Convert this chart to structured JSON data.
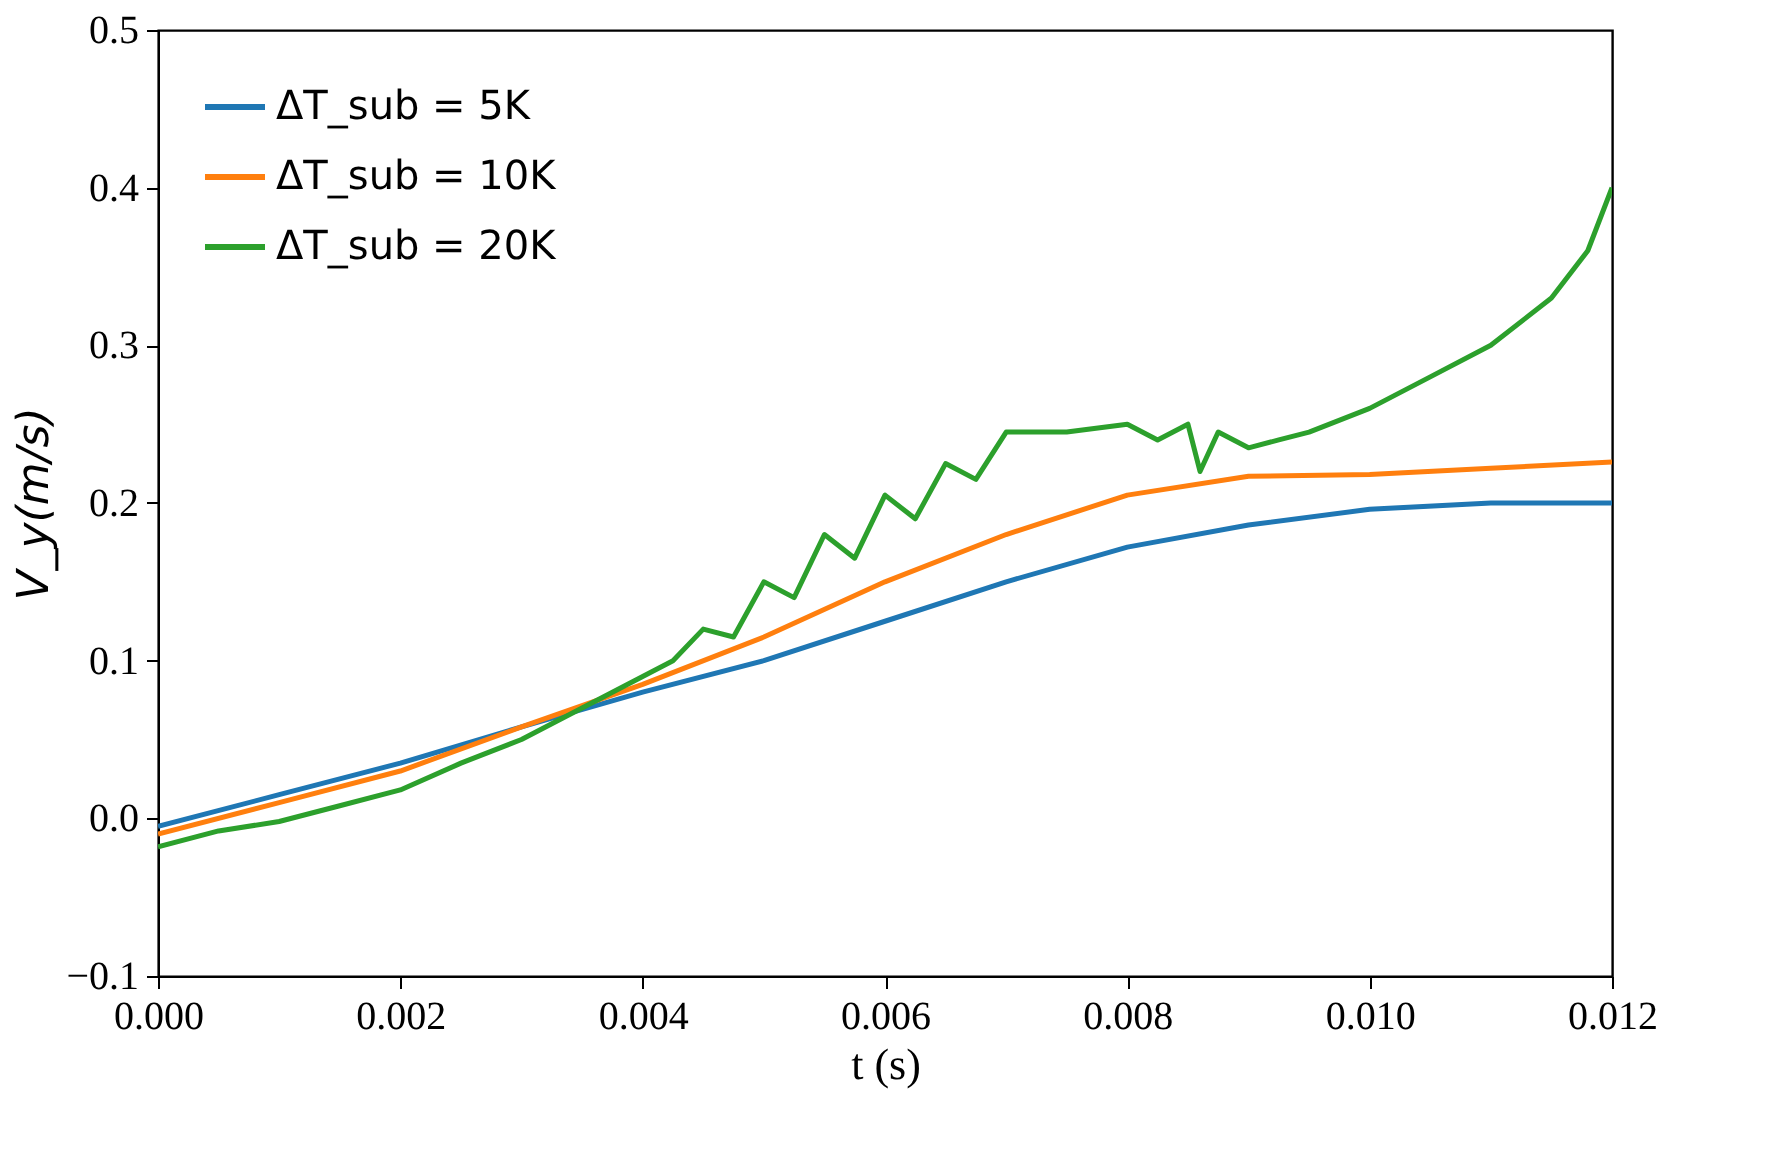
{
  "chart_data": {
    "type": "line",
    "xlabel": "t (s)",
    "ylabel": "V_y(m/s)",
    "xlim": [
      0,
      0.012
    ],
    "ylim": [
      -0.1,
      0.5
    ],
    "xticks": [
      {
        "value": 0,
        "label": "0.000"
      },
      {
        "value": 0.002,
        "label": "0.002"
      },
      {
        "value": 0.004,
        "label": "0.004"
      },
      {
        "value": 0.006,
        "label": "0.006"
      },
      {
        "value": 0.008,
        "label": "0.008"
      },
      {
        "value": 0.01,
        "label": "0.010"
      },
      {
        "value": 0.012,
        "label": "0.012"
      }
    ],
    "yticks": [
      {
        "value": -0.1,
        "label": "−0.1"
      },
      {
        "value": 0,
        "label": "0.0"
      },
      0.1,
      0.2,
      0.3,
      0.4,
      0.5
    ],
    "grid": false,
    "legend": "top left",
    "line_style": "solid",
    "marker": "none",
    "series": [
      {
        "name": "ΔT_sub = 5K",
        "color": "#1f77b4",
        "x": [
          0,
          0.001,
          0.002,
          0.003,
          0.004,
          0.005,
          0.006,
          0.007,
          0.008,
          0.009,
          0.01,
          0.011,
          0.012
        ],
        "values": [
          -0.005,
          0.015,
          0.035,
          0.058,
          0.08,
          0.1,
          0.125,
          0.15,
          0.172,
          0.186,
          0.196,
          0.2,
          0.2
        ]
      },
      {
        "name": "ΔT_sub = 10K",
        "color": "#ff7f0e",
        "x": [
          0,
          0.001,
          0.002,
          0.003,
          0.004,
          0.005,
          0.006,
          0.007,
          0.008,
          0.009,
          0.01,
          0.011,
          0.012
        ],
        "values": [
          -0.01,
          0.01,
          0.03,
          0.058,
          0.085,
          0.115,
          0.15,
          0.18,
          0.205,
          0.217,
          0.218,
          0.222,
          0.226
        ]
      },
      {
        "name": "ΔT_sub = 20K",
        "color": "#2ca02c",
        "x": [
          0,
          0.0005,
          0.001,
          0.0015,
          0.002,
          0.0025,
          0.003,
          0.0035,
          0.004,
          0.00425,
          0.0045,
          0.00475,
          0.005,
          0.00525,
          0.0055,
          0.00575,
          0.006,
          0.00625,
          0.0065,
          0.00675,
          0.007,
          0.0075,
          0.008,
          0.00825,
          0.0085,
          0.0086,
          0.00875,
          0.009,
          0.00925,
          0.0095,
          0.01,
          0.0105,
          0.011,
          0.0115,
          0.0118,
          0.012
        ],
        "values": [
          -0.018,
          -0.008,
          -0.002,
          0.008,
          0.018,
          0.035,
          0.05,
          0.07,
          0.09,
          0.1,
          0.12,
          0.115,
          0.15,
          0.14,
          0.18,
          0.165,
          0.205,
          0.19,
          0.225,
          0.215,
          0.245,
          0.245,
          0.25,
          0.24,
          0.25,
          0.22,
          0.245,
          0.235,
          0.24,
          0.245,
          0.26,
          0.28,
          0.3,
          0.33,
          0.36,
          0.4
        ]
      }
    ]
  }
}
